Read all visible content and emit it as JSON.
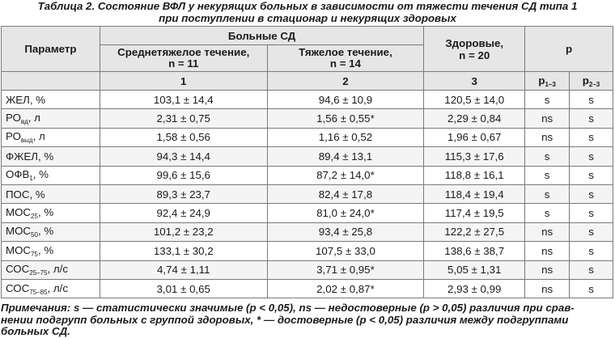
{
  "caption": {
    "line1": "Таблица 2. Состояние ВФЛ у некурящих больных в зависимости от тяжести течения СД типа 1",
    "line2": "при поступлении в стационар и некурящих здоровых"
  },
  "headers": {
    "parameter": "Параметр",
    "sick_group": "Больные СД",
    "moderate": "Среднетяжелое течение,",
    "moderate_n": "n = 11",
    "severe": "Тяжелое течение,",
    "severe_n": "n = 14",
    "healthy": "Здоровые,",
    "healthy_n": "n = 20",
    "p": "р",
    "col1": "1",
    "col2": "2",
    "col3": "3",
    "p13_base": "р",
    "p13_sub": "1–3",
    "p23_base": "р",
    "p23_sub": "2–3"
  },
  "rows": [
    {
      "base": "ЖЕЛ",
      "sub": "",
      "unit": ", %",
      "v1": "103,1 ± 14,4",
      "v2": "94,6 ± 10,9",
      "v3": "120,5 ± 14,0",
      "p13": "s",
      "p23": "s"
    },
    {
      "base": "РО",
      "sub": "вд",
      "unit": ", л",
      "v1": "2,31 ± 0,75",
      "v2": "1,56 ± 0,55*",
      "v3": "2,29 ± 0,84",
      "p13": "ns",
      "p23": "s"
    },
    {
      "base": "РО",
      "sub": "выд",
      "unit": ", л",
      "v1": "1,58 ± 0,56",
      "v2": "1,16 ± 0,52",
      "v3": "1,96 ± 0,67",
      "p13": "ns",
      "p23": "s"
    },
    {
      "base": "ФЖЕЛ",
      "sub": "",
      "unit": ", %",
      "v1": "94,3 ± 14,4",
      "v2": "89,4 ± 13,1",
      "v3": "115,3 ± 17,6",
      "p13": "s",
      "p23": "s"
    },
    {
      "base": "ОФВ",
      "sub": "1",
      "unit": ", %",
      "v1": "99,6 ± 15,6",
      "v2": "87,2 ± 14,0*",
      "v3": "118,8 ± 16,1",
      "p13": "s",
      "p23": "s"
    },
    {
      "base": "ПОС",
      "sub": "",
      "unit": ", %",
      "v1": "89,3 ± 23,7",
      "v2": "82,4 ± 17,8",
      "v3": "118,4 ± 19,4",
      "p13": "s",
      "p23": "s"
    },
    {
      "base": "МОС",
      "sub": "25",
      "unit": ", %",
      "v1": "92,4 ± 24,9",
      "v2": "81,0 ± 24,0*",
      "v3": "117,4 ± 19,5",
      "p13": "s",
      "p23": "s"
    },
    {
      "base": "МОС",
      "sub": "50",
      "unit": ", %",
      "v1": "101,2 ± 23,2",
      "v2": "93,4 ± 25,8",
      "v3": "122,2 ± 27,5",
      "p13": "ns",
      "p23": "s"
    },
    {
      "base": "МОС",
      "sub": "75",
      "unit": ", %",
      "v1": "133,1 ± 30,2",
      "v2": "107,5 ± 33,0",
      "v3": "138,6 ± 38,7",
      "p13": "ns",
      "p23": "s"
    },
    {
      "base": "СОС",
      "sub": "25–75",
      "unit": ", л/с",
      "v1": "4,74 ± 1,11",
      "v2": "3,71 ± 0,95*",
      "v3": "5,05 ± 1,31",
      "p13": "ns",
      "p23": "s"
    },
    {
      "base": "СОС",
      "sub": "75–85",
      "unit": ", л/с",
      "v1": "3,01 ± 0,65",
      "v2": "2,02 ± 0,87*",
      "v3": "2,93 ± 0,99",
      "p13": "ns",
      "p23": "s"
    }
  ],
  "notes": {
    "line1": "Примечания: s — статистически значимые (p < 0,05), ns — недостоверные (p > 0,05) различия при срав-",
    "line2": "нении подгрупп больных с группой здоровых, * — достоверные (p < 0,05) различия между подгруппами",
    "line3": "больных СД."
  }
}
